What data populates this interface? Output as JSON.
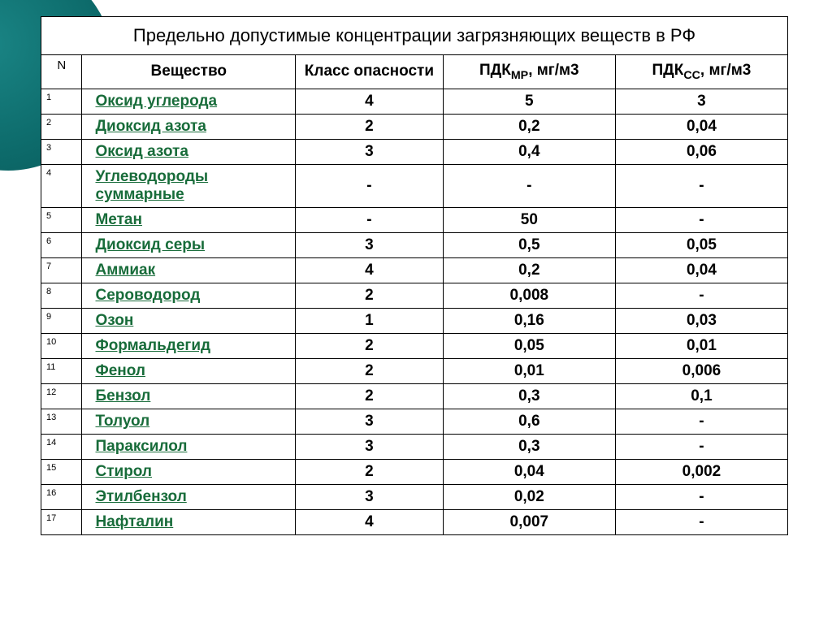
{
  "title": "Предельно допустимые концентрации загрязняющих веществ в РФ",
  "columns": {
    "n": "N",
    "substance": "Вещество",
    "class": "Класс опасности",
    "pdkmr_prefix": "ПДК",
    "pdkmr_sub": "МР",
    "pdkmr_suffix": ", мг/м3",
    "pdkss_prefix": "ПДК",
    "pdkss_sub": "СС",
    "pdkss_suffix": ", мг/м3"
  },
  "link_color": "#186c3a",
  "border_color": "#000000",
  "rows": [
    {
      "n": "1",
      "substance": "Оксид углерода",
      "class": "4",
      "pdkmr": "5",
      "pdkss": "3"
    },
    {
      "n": "2",
      "substance": "Диоксид азота",
      "class": "2",
      "pdkmr": "0,2",
      "pdkss": "0,04"
    },
    {
      "n": "3",
      "substance": "Оксид азота",
      "class": "3",
      "pdkmr": "0,4",
      "pdkss": "0,06"
    },
    {
      "n": "4",
      "substance": "Углеводороды суммарные",
      "class": "-",
      "pdkmr": "-",
      "pdkss": "-"
    },
    {
      "n": "5",
      "substance": "Метан",
      "class": "-",
      "pdkmr": "50",
      "pdkss": "-"
    },
    {
      "n": "6",
      "substance": "Диоксид серы",
      "class": "3",
      "pdkmr": "0,5",
      "pdkss": "0,05"
    },
    {
      "n": "7",
      "substance": "Аммиак",
      "class": "4",
      "pdkmr": "0,2",
      "pdkss": "0,04"
    },
    {
      "n": "8",
      "substance": "Сероводород",
      "class": "2",
      "pdkmr": "0,008",
      "pdkss": "-"
    },
    {
      "n": "9",
      "substance": "Озон",
      "class": "1",
      "pdkmr": "0,16",
      "pdkss": "0,03"
    },
    {
      "n": "10",
      "substance": "Формальдегид",
      "class": "2",
      "pdkmr": "0,05",
      "pdkss": "0,01"
    },
    {
      "n": "11",
      "substance": "Фенол",
      "class": "2",
      "pdkmr": "0,01",
      "pdkss": "0,006"
    },
    {
      "n": "12",
      "substance": "Бензол",
      "class": "2",
      "pdkmr": "0,3",
      "pdkss": "0,1"
    },
    {
      "n": "13",
      "substance": "Толуол",
      "class": "3",
      "pdkmr": "0,6",
      "pdkss": "-"
    },
    {
      "n": "14",
      "substance": "Параксилол",
      "class": "3",
      "pdkmr": "0,3",
      "pdkss": "-"
    },
    {
      "n": "15",
      "substance": "Стирол",
      "class": "2",
      "pdkmr": "0,04",
      "pdkss": "0,002"
    },
    {
      "n": "16",
      "substance": "Этилбензол",
      "class": "3",
      "pdkmr": "0,02",
      "pdkss": "-"
    },
    {
      "n": "17",
      "substance": "Нафталин",
      "class": "4",
      "pdkmr": "0,007",
      "pdkss": "-"
    }
  ]
}
